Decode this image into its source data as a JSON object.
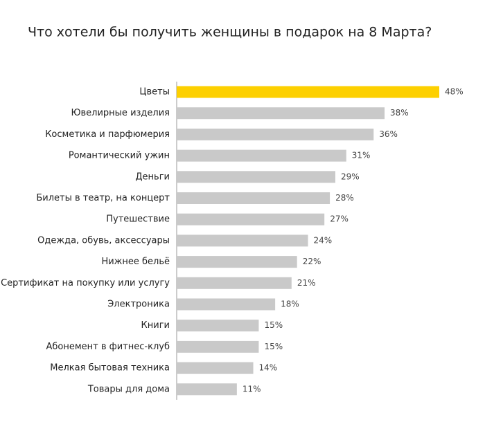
{
  "chart_data": {
    "type": "hbar",
    "title": "Что хотели бы получить женщины в подарок на 8 Марта?",
    "categories": [
      "Цветы",
      "Ювелирные изделия",
      "Косметика и парфюмерия",
      "Романтический ужин",
      "Деньги",
      "Билеты в театр, на концерт",
      "Путешествие",
      "Одежда, обувь, аксессуары",
      "Нижнее бельё",
      "Сертификат на покупку или услугу",
      "Электроника",
      "Книги",
      "Абонемент в фитнес-клуб",
      "Мелкая бытовая техника",
      "Товары для дома"
    ],
    "values": [
      48,
      38,
      36,
      31,
      29,
      28,
      27,
      24,
      22,
      21,
      18,
      15,
      15,
      14,
      11
    ],
    "value_labels": [
      "48%",
      "38%",
      "36%",
      "31%",
      "29%",
      "28%",
      "27%",
      "24%",
      "22%",
      "21%",
      "18%",
      "15%",
      "15%",
      "14%",
      "11%"
    ],
    "colors": [
      "#fdd000",
      "#c9c9c9",
      "#c9c9c9",
      "#c9c9c9",
      "#c9c9c9",
      "#c9c9c9",
      "#c9c9c9",
      "#c9c9c9",
      "#c9c9c9",
      "#c9c9c9",
      "#c9c9c9",
      "#c9c9c9",
      "#c9c9c9",
      "#c9c9c9",
      "#c9c9c9"
    ]
  }
}
